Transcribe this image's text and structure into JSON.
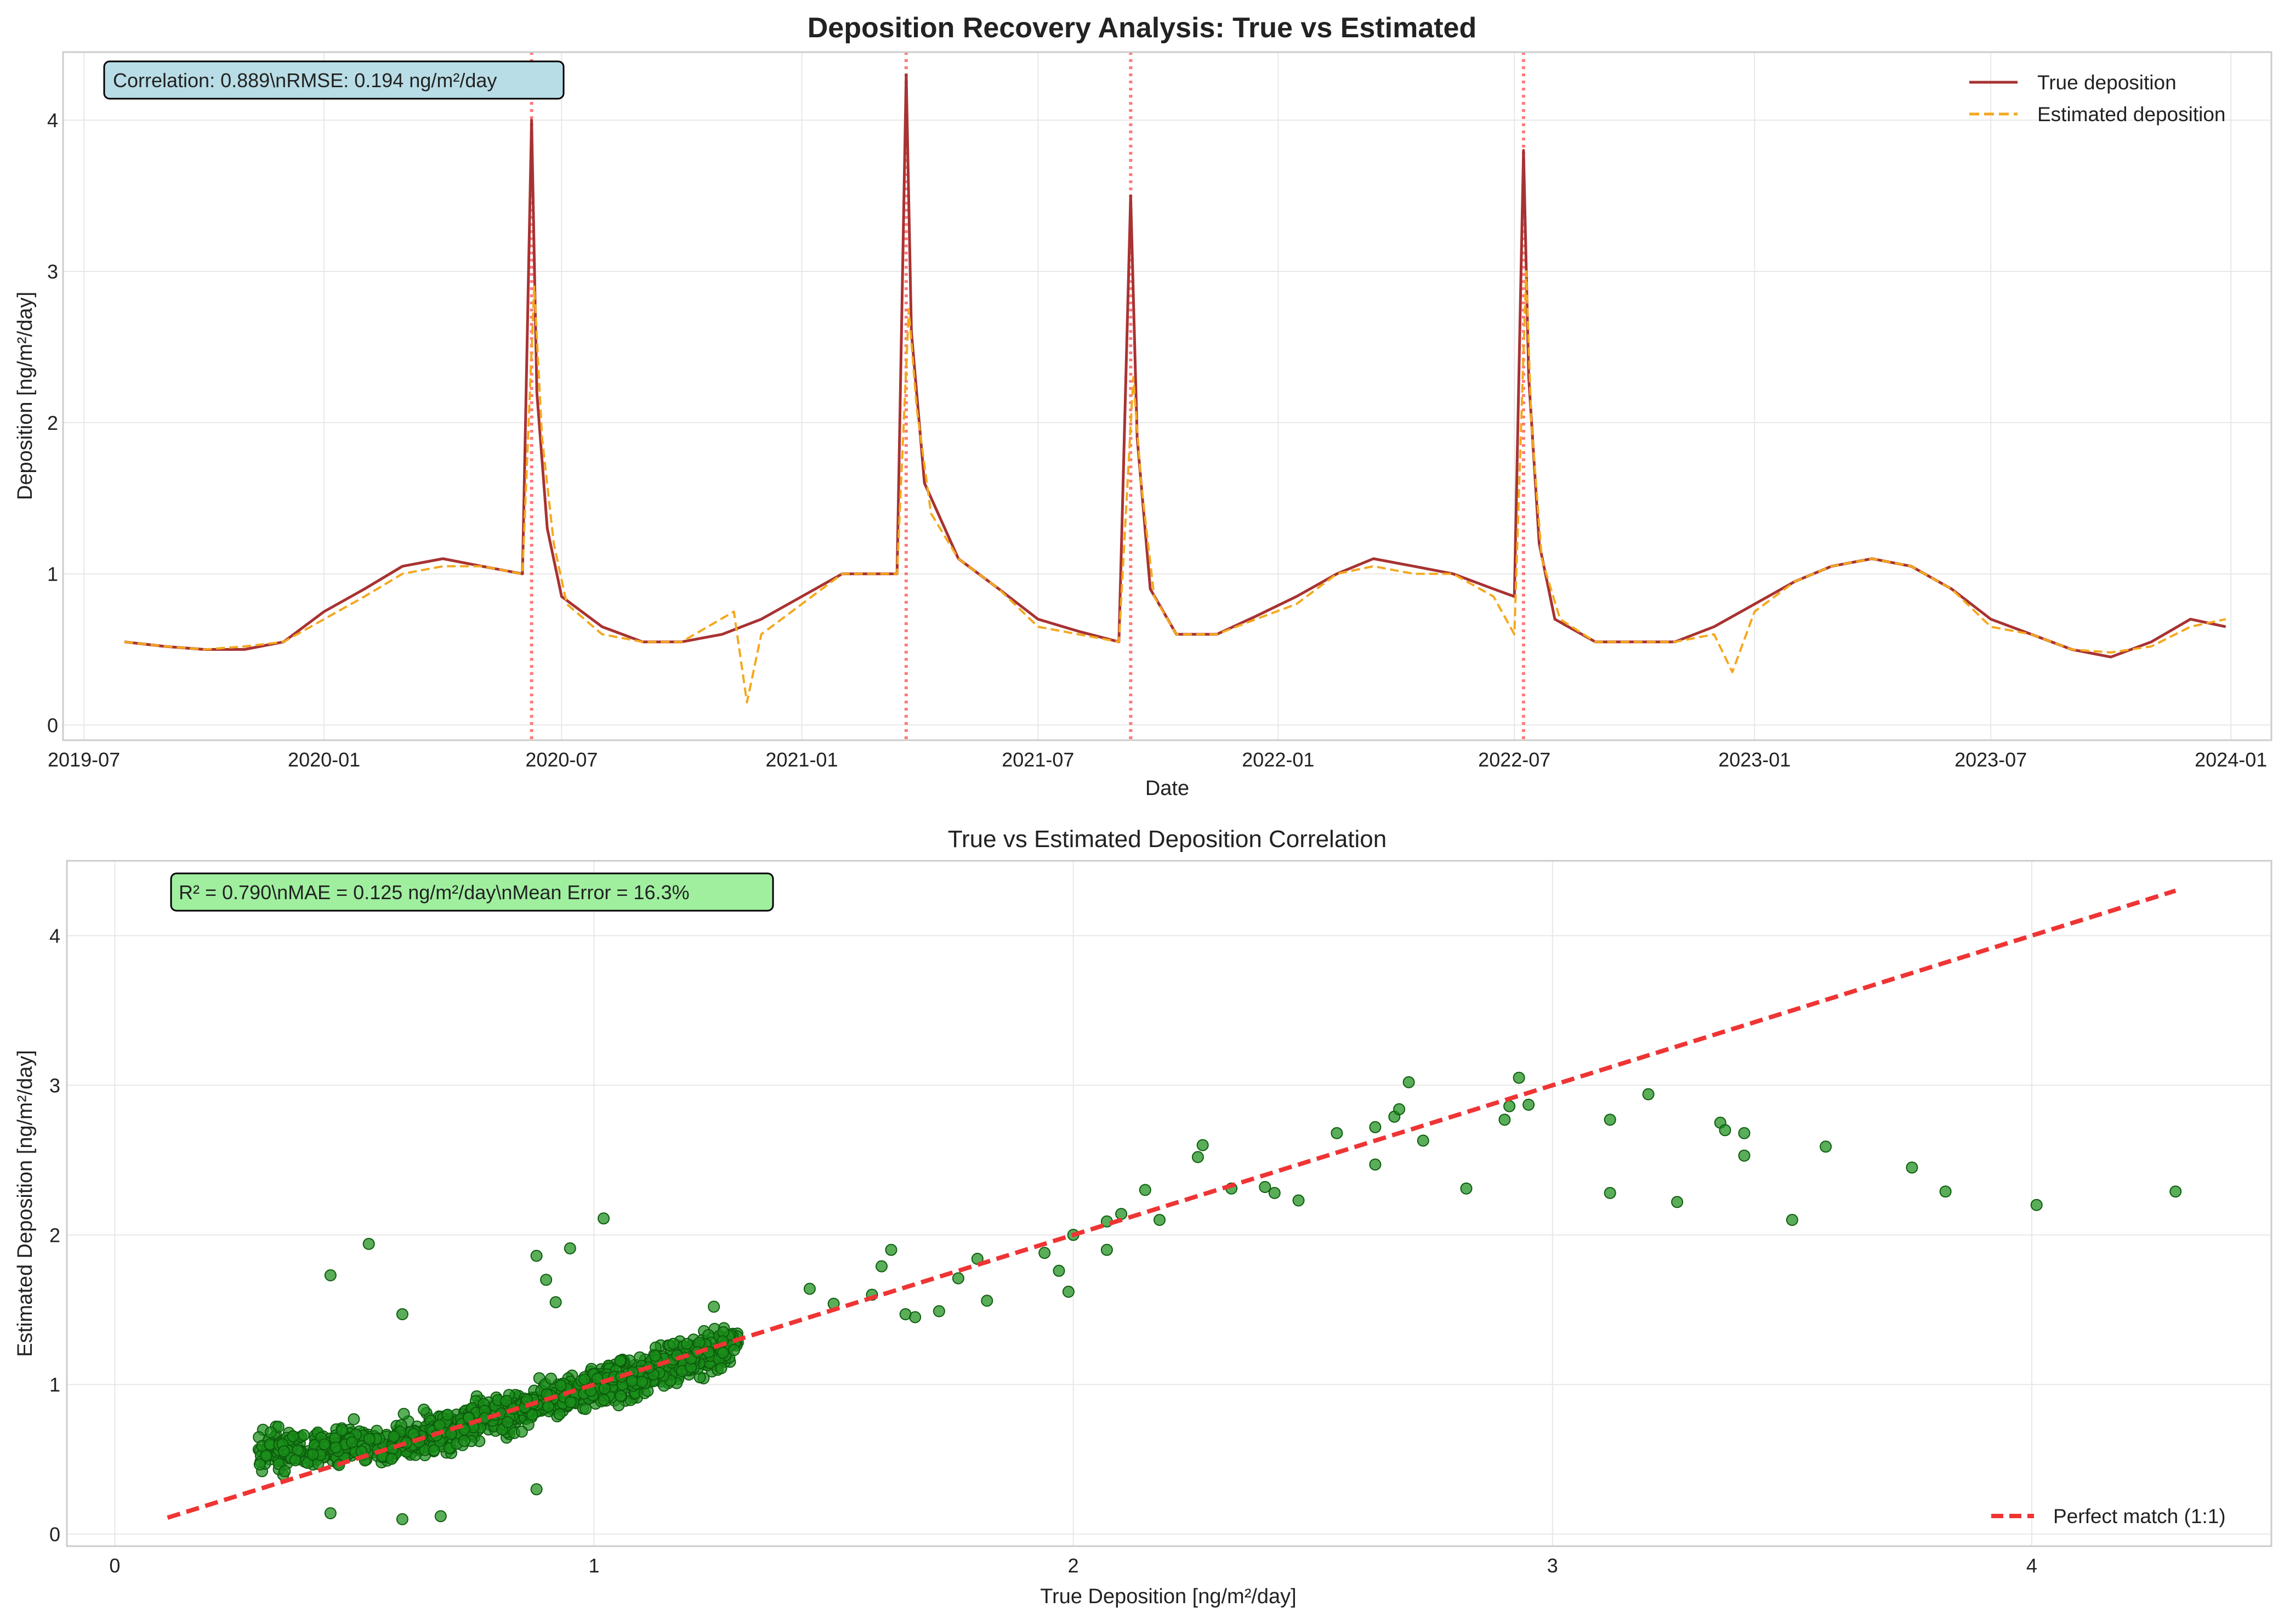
{
  "figure": {
    "title": "Deposition Recovery Analysis: True vs Estimated"
  },
  "chart_data": [
    {
      "type": "line",
      "title": "Deposition Recovery Analysis: True vs Estimated",
      "xlabel": "Date",
      "ylabel": "Deposition [ng/m²/day]",
      "x_range": [
        "2019-06-15",
        "2024-02-01"
      ],
      "ylim": [
        -0.1,
        4.45
      ],
      "x_ticks": [
        "2019-07",
        "2020-01",
        "2020-07",
        "2021-01",
        "2021-07",
        "2022-01",
        "2022-07",
        "2023-01",
        "2023-07",
        "2024-01"
      ],
      "x_tick_dates": [
        "2019-07-01",
        "2020-01-01",
        "2020-07-01",
        "2021-01-01",
        "2021-07-01",
        "2022-01-01",
        "2022-07-01",
        "2023-01-01",
        "2023-07-01",
        "2024-01-01"
      ],
      "y_ticks": [
        0,
        1,
        2,
        3,
        4
      ],
      "grid": true,
      "legend_position": "top-right",
      "annotation": "Correlation: 0.889\\nRMSE: 0.194 ng/m²/day",
      "annotation_color": "#b9dde6",
      "event_markers": [
        "2020-06-08",
        "2021-03-22",
        "2021-09-10",
        "2022-07-08"
      ],
      "event_color": "#ff4d4d",
      "series": [
        {
          "name": "True deposition",
          "color": "#a83232",
          "style": "solid",
          "x": [
            "2019-08-01",
            "2019-09-01",
            "2019-10-01",
            "2019-11-01",
            "2019-12-01",
            "2020-01-01",
            "2020-02-01",
            "2020-03-01",
            "2020-04-01",
            "2020-05-01",
            "2020-06-01",
            "2020-06-08",
            "2020-06-12",
            "2020-06-20",
            "2020-07-01",
            "2020-08-01",
            "2020-09-01",
            "2020-10-01",
            "2020-11-01",
            "2020-12-01",
            "2021-01-01",
            "2021-02-01",
            "2021-03-15",
            "2021-03-22",
            "2021-03-26",
            "2021-04-05",
            "2021-05-01",
            "2021-06-01",
            "2021-07-01",
            "2021-08-01",
            "2021-09-01",
            "2021-09-10",
            "2021-09-15",
            "2021-09-25",
            "2021-10-15",
            "2021-11-15",
            "2021-12-15",
            "2022-01-15",
            "2022-02-15",
            "2022-03-15",
            "2022-04-15",
            "2022-05-15",
            "2022-06-15",
            "2022-07-01",
            "2022-07-08",
            "2022-07-12",
            "2022-07-20",
            "2022-08-01",
            "2022-09-01",
            "2022-10-01",
            "2022-11-01",
            "2022-12-01",
            "2023-01-01",
            "2023-02-01",
            "2023-03-01",
            "2023-04-01",
            "2023-05-01",
            "2023-06-01",
            "2023-07-01",
            "2023-08-01",
            "2023-09-01",
            "2023-10-01",
            "2023-11-01",
            "2023-12-01",
            "2023-12-28"
          ],
          "y": [
            0.55,
            0.52,
            0.5,
            0.5,
            0.55,
            0.75,
            0.9,
            1.05,
            1.1,
            1.05,
            1.0,
            4.0,
            2.2,
            1.3,
            0.85,
            0.65,
            0.55,
            0.55,
            0.6,
            0.7,
            0.85,
            1.0,
            1.0,
            4.3,
            2.6,
            1.6,
            1.1,
            0.9,
            0.7,
            0.62,
            0.55,
            3.5,
            1.9,
            0.9,
            0.6,
            0.6,
            0.72,
            0.85,
            1.0,
            1.1,
            1.05,
            1.0,
            0.9,
            0.85,
            3.8,
            2.3,
            1.2,
            0.7,
            0.55,
            0.55,
            0.55,
            0.65,
            0.8,
            0.95,
            1.05,
            1.1,
            1.05,
            0.9,
            0.7,
            0.6,
            0.5,
            0.45,
            0.55,
            0.7,
            0.65
          ]
        },
        {
          "name": "Estimated deposition",
          "color": "#f4a81d",
          "style": "dashed",
          "x": [
            "2019-08-01",
            "2019-09-01",
            "2019-10-01",
            "2019-11-01",
            "2019-12-01",
            "2020-01-01",
            "2020-02-01",
            "2020-03-01",
            "2020-04-01",
            "2020-05-01",
            "2020-06-01",
            "2020-06-10",
            "2020-06-16",
            "2020-06-25",
            "2020-07-05",
            "2020-08-01",
            "2020-09-01",
            "2020-10-01",
            "2020-11-10",
            "2020-11-20",
            "2020-12-01",
            "2021-01-01",
            "2021-02-01",
            "2021-03-15",
            "2021-03-24",
            "2021-03-30",
            "2021-04-10",
            "2021-05-01",
            "2021-06-01",
            "2021-07-01",
            "2021-08-01",
            "2021-09-01",
            "2021-09-12",
            "2021-09-18",
            "2021-09-28",
            "2021-10-15",
            "2021-11-15",
            "2021-12-15",
            "2022-01-15",
            "2022-02-15",
            "2022-03-15",
            "2022-04-15",
            "2022-05-15",
            "2022-06-15",
            "2022-07-01",
            "2022-07-10",
            "2022-07-14",
            "2022-07-22",
            "2022-08-05",
            "2022-09-01",
            "2022-10-01",
            "2022-11-01",
            "2022-12-01",
            "2022-12-15",
            "2023-01-01",
            "2023-02-01",
            "2023-03-01",
            "2023-04-01",
            "2023-05-01",
            "2023-06-01",
            "2023-07-01",
            "2023-08-01",
            "2023-09-01",
            "2023-10-01",
            "2023-11-01",
            "2023-12-01",
            "2023-12-28"
          ],
          "y": [
            0.55,
            0.52,
            0.5,
            0.52,
            0.55,
            0.7,
            0.85,
            1.0,
            1.05,
            1.05,
            1.0,
            2.9,
            1.9,
            1.2,
            0.8,
            0.6,
            0.55,
            0.55,
            0.75,
            0.15,
            0.6,
            0.8,
            1.0,
            1.0,
            2.75,
            2.1,
            1.4,
            1.1,
            0.9,
            0.65,
            0.6,
            0.55,
            2.3,
            1.6,
            0.85,
            0.6,
            0.6,
            0.7,
            0.8,
            1.0,
            1.05,
            1.0,
            1.0,
            0.85,
            0.6,
            3.0,
            2.0,
            1.1,
            0.7,
            0.55,
            0.55,
            0.55,
            0.6,
            0.35,
            0.75,
            0.95,
            1.05,
            1.1,
            1.05,
            0.9,
            0.65,
            0.6,
            0.5,
            0.48,
            0.52,
            0.65,
            0.7
          ]
        }
      ]
    },
    {
      "type": "scatter",
      "title": "True vs Estimated Deposition Correlation",
      "xlabel": "True Deposition [ng/m²/day]",
      "ylabel": "Estimated Deposition [ng/m²/day]",
      "xlim": [
        -0.1,
        4.5
      ],
      "ylim": [
        -0.08,
        4.5
      ],
      "x_ticks": [
        0,
        1,
        2,
        3,
        4
      ],
      "y_ticks": [
        0,
        1,
        2,
        3,
        4
      ],
      "grid": true,
      "legend_position": "bottom-right",
      "annotation": "R² = 0.790\\nMAE = 0.125 ng/m²/day\\nMean Error = 16.3%",
      "annotation_color": "#9fef9f",
      "reference_line": {
        "name": "Perfect match (1:1)",
        "x": [
          0.11,
          4.3
        ],
        "y": [
          0.11,
          4.3
        ],
        "color": "#ef3434",
        "style": "dashed"
      },
      "point_color": "#1a8f1a",
      "point_edge_color": "#0d5c0d",
      "cluster_summary": {
        "description": "dense cloud of roughly 1200 points between true 0.3 and 1.3",
        "x_range": [
          0.3,
          1.3
        ],
        "y_center_slope": 1.0,
        "y_spread": 0.12
      },
      "outliers": [
        {
          "x": 0.45,
          "y": 1.73
        },
        {
          "x": 0.53,
          "y": 1.94
        },
        {
          "x": 0.6,
          "y": 1.47
        },
        {
          "x": 0.88,
          "y": 1.86
        },
        {
          "x": 0.95,
          "y": 1.91
        },
        {
          "x": 1.02,
          "y": 2.11
        },
        {
          "x": 0.9,
          "y": 1.7
        },
        {
          "x": 0.92,
          "y": 1.55
        },
        {
          "x": 0.45,
          "y": 0.14
        },
        {
          "x": 0.6,
          "y": 0.1
        },
        {
          "x": 0.68,
          "y": 0.12
        },
        {
          "x": 0.88,
          "y": 0.3
        },
        {
          "x": 1.25,
          "y": 1.52
        },
        {
          "x": 1.45,
          "y": 1.64
        },
        {
          "x": 1.5,
          "y": 1.54
        },
        {
          "x": 1.58,
          "y": 1.6
        },
        {
          "x": 1.6,
          "y": 1.79
        },
        {
          "x": 1.62,
          "y": 1.9
        },
        {
          "x": 1.65,
          "y": 1.47
        },
        {
          "x": 1.67,
          "y": 1.45
        },
        {
          "x": 1.72,
          "y": 1.49
        },
        {
          "x": 1.76,
          "y": 1.71
        },
        {
          "x": 1.8,
          "y": 1.84
        },
        {
          "x": 1.82,
          "y": 1.56
        },
        {
          "x": 1.94,
          "y": 1.88
        },
        {
          "x": 1.97,
          "y": 1.76
        },
        {
          "x": 1.99,
          "y": 1.62
        },
        {
          "x": 2.0,
          "y": 2.0
        },
        {
          "x": 2.07,
          "y": 2.09
        },
        {
          "x": 2.07,
          "y": 1.9
        },
        {
          "x": 2.1,
          "y": 2.14
        },
        {
          "x": 2.15,
          "y": 2.3
        },
        {
          "x": 2.18,
          "y": 2.1
        },
        {
          "x": 2.26,
          "y": 2.52
        },
        {
          "x": 2.27,
          "y": 2.6
        },
        {
          "x": 2.33,
          "y": 2.31
        },
        {
          "x": 2.4,
          "y": 2.32
        },
        {
          "x": 2.42,
          "y": 2.28
        },
        {
          "x": 2.47,
          "y": 2.23
        },
        {
          "x": 2.55,
          "y": 2.68
        },
        {
          "x": 2.63,
          "y": 2.72
        },
        {
          "x": 2.63,
          "y": 2.47
        },
        {
          "x": 2.67,
          "y": 2.79
        },
        {
          "x": 2.68,
          "y": 2.84
        },
        {
          "x": 2.7,
          "y": 3.02
        },
        {
          "x": 2.73,
          "y": 2.63
        },
        {
          "x": 2.82,
          "y": 2.31
        },
        {
          "x": 2.9,
          "y": 2.77
        },
        {
          "x": 2.91,
          "y": 2.86
        },
        {
          "x": 2.93,
          "y": 3.05
        },
        {
          "x": 2.95,
          "y": 2.87
        },
        {
          "x": 3.12,
          "y": 2.28
        },
        {
          "x": 3.12,
          "y": 2.77
        },
        {
          "x": 3.2,
          "y": 2.94
        },
        {
          "x": 3.26,
          "y": 2.22
        },
        {
          "x": 3.35,
          "y": 2.75
        },
        {
          "x": 3.36,
          "y": 2.7
        },
        {
          "x": 3.4,
          "y": 2.68
        },
        {
          "x": 3.4,
          "y": 2.53
        },
        {
          "x": 3.5,
          "y": 2.1
        },
        {
          "x": 3.57,
          "y": 2.59
        },
        {
          "x": 3.75,
          "y": 2.45
        },
        {
          "x": 3.82,
          "y": 2.29
        },
        {
          "x": 4.01,
          "y": 2.2
        },
        {
          "x": 4.3,
          "y": 2.29
        }
      ]
    }
  ]
}
